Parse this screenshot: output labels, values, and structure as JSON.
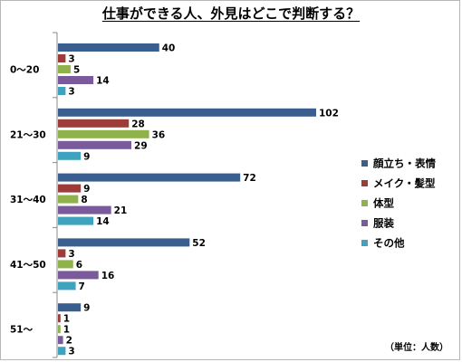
{
  "chart_data": {
    "type": "bar",
    "orientation": "horizontal",
    "title": "仕事ができる人、外見はどこで判断する？",
    "unit_note": "（単位：人数）",
    "categories": [
      "0～20",
      "21～30",
      "31～40",
      "41～50",
      "51～"
    ],
    "series": [
      {
        "name": "顔立ち・表情",
        "color": "#3a5f8f",
        "values": [
          40,
          102,
          72,
          52,
          9
        ]
      },
      {
        "name": "メイク・髪型",
        "color": "#9c3b37",
        "values": [
          3,
          28,
          9,
          3,
          1
        ]
      },
      {
        "name": "体型",
        "color": "#8fb24a",
        "values": [
          5,
          36,
          8,
          6,
          1
        ]
      },
      {
        "name": "服装",
        "color": "#7a5a9a",
        "values": [
          14,
          29,
          21,
          16,
          2
        ]
      },
      {
        "name": "その他",
        "color": "#3fa3c0",
        "values": [
          3,
          9,
          14,
          7,
          3
        ]
      }
    ],
    "xlim": [
      0,
      120
    ],
    "grid": false,
    "legend": "right"
  }
}
